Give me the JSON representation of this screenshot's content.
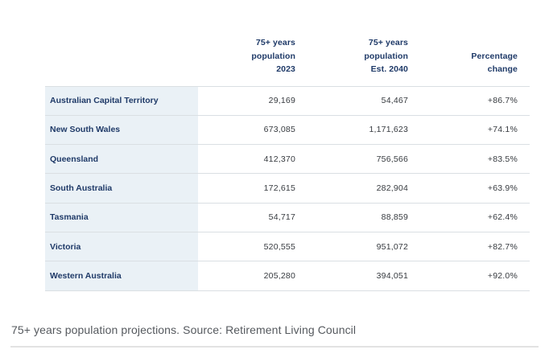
{
  "caption": "75+ years population projections. Source: Retirement Living Council",
  "table": {
    "headers": {
      "col2": [
        "75+ years",
        "population",
        "2023"
      ],
      "col3": [
        "75+ years",
        "population",
        "Est. 2040"
      ],
      "col4": [
        "Percentage",
        "change"
      ]
    },
    "rows": [
      {
        "state": "Australian Capital Territory",
        "pop2023": "29,169",
        "pop2040": "54,467",
        "change": "+86.7%"
      },
      {
        "state": "New South Wales",
        "pop2023": "673,085",
        "pop2040": "1,171,623",
        "change": "+74.1%"
      },
      {
        "state": "Queensland",
        "pop2023": "412,370",
        "pop2040": "756,566",
        "change": "+83.5%"
      },
      {
        "state": "South Australia",
        "pop2023": "172,615",
        "pop2040": "282,904",
        "change": "+63.9%"
      },
      {
        "state": "Tasmania",
        "pop2023": "54,717",
        "pop2040": "88,859",
        "change": "+62.4%"
      },
      {
        "state": "Victoria",
        "pop2023": "520,555",
        "pop2040": "951,072",
        "change": "+82.7%"
      },
      {
        "state": "Western Australia",
        "pop2023": "205,280",
        "pop2040": "394,051",
        "change": "+92.0%"
      }
    ]
  },
  "colors": {
    "header_text": "#1f3a68",
    "state_text": "#1f3a68",
    "value_text": "#363a3f",
    "first_col_bg": "#eaf1f6",
    "row_border": "#dadfe3",
    "caption_text": "#55595e",
    "divider": "#e2e2e2"
  }
}
